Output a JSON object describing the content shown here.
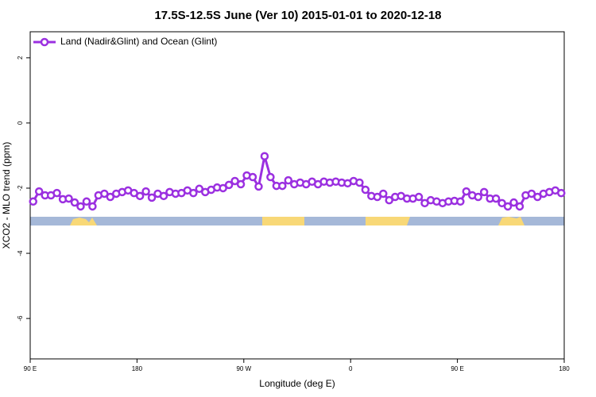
{
  "chart_data": {
    "type": "line",
    "title": "17.5S-12.5S June (Ver 10)   2015-01-01 to 2020-12-18",
    "x_label": "Longitude (deg E)",
    "y_label": "XCO2 - MLO trend (ppm)",
    "x": [
      92.5,
      97.5,
      102.5,
      107.5,
      112.5,
      117.5,
      122.5,
      127.5,
      132.5,
      137.5,
      142.5,
      147.5,
      152.5,
      157.5,
      162.5,
      167.5,
      172.5,
      177.5,
      182.5,
      187.5,
      192.5,
      197.5,
      202.5,
      207.5,
      212.5,
      217.5,
      222.5,
      227.5,
      232.5,
      237.5,
      242.5,
      247.5,
      252.5,
      257.5,
      262.5,
      267.5,
      272.5,
      277.5,
      282.5,
      287.5,
      292.5,
      297.5,
      302.5,
      307.5,
      312.5,
      317.5,
      322.5,
      327.5,
      332.5,
      337.5,
      342.5,
      347.5,
      352.5,
      357.5,
      362.5,
      367.5,
      372.5,
      377.5,
      382.5,
      387.5,
      392.5,
      397.5,
      402.5,
      407.5,
      412.5,
      417.5,
      422.5,
      427.5,
      432.5,
      437.5,
      442.5,
      447.5,
      452.5,
      457.5,
      462.5,
      467.5,
      472.5,
      477.5,
      482.5,
      487.5,
      492.5,
      497.5,
      502.5,
      507.5,
      512.5,
      517.5,
      522.5,
      527.5,
      532.5,
      537.5
    ],
    "series": [
      {
        "name": "Land (Nadir&Glint) and Ocean (Glint)",
        "color": "#9b30e0",
        "values": [
          -2.41,
          -2.1,
          -2.22,
          -2.22,
          -2.15,
          -2.34,
          -2.32,
          -2.44,
          -2.56,
          -2.41,
          -2.56,
          -2.22,
          -2.17,
          -2.27,
          -2.17,
          -2.12,
          -2.07,
          -2.15,
          -2.24,
          -2.1,
          -2.29,
          -2.17,
          -2.24,
          -2.12,
          -2.17,
          -2.15,
          -2.07,
          -2.15,
          -2.02,
          -2.12,
          -2.05,
          -1.98,
          -2.0,
          -1.9,
          -1.78,
          -1.88,
          -1.61,
          -1.66,
          -1.95,
          -1.02,
          -1.66,
          -1.93,
          -1.93,
          -1.76,
          -1.88,
          -1.83,
          -1.88,
          -1.8,
          -1.88,
          -1.8,
          -1.83,
          -1.8,
          -1.83,
          -1.85,
          -1.78,
          -1.83,
          -2.05,
          -2.24,
          -2.27,
          -2.17,
          -2.37,
          -2.27,
          -2.24,
          -2.32,
          -2.32,
          -2.27,
          -2.46,
          -2.37,
          -2.41,
          -2.46,
          -2.41,
          -2.39,
          -2.41,
          -2.1,
          -2.22,
          -2.27,
          -2.12,
          -2.32,
          -2.32,
          -2.46,
          -2.56,
          -2.44,
          -2.56,
          -2.22,
          -2.17,
          -2.27,
          -2.17,
          -2.12,
          -2.07,
          -2.15
        ]
      }
    ],
    "xlim": [
      90,
      540
    ],
    "xticks": [
      {
        "value": 90,
        "label": "90 E"
      },
      180,
      {
        "value": 270,
        "label": "90 W"
      },
      {
        "value": 360,
        "label": "0"
      },
      {
        "value": 450,
        "label": "90 E"
      },
      {
        "value": 540,
        "label": "180"
      }
    ],
    "ylim": [
      -7.24,
      2.8
    ],
    "yticks": [
      2,
      0,
      -2,
      -4,
      -6
    ],
    "legend": "top-left"
  }
}
